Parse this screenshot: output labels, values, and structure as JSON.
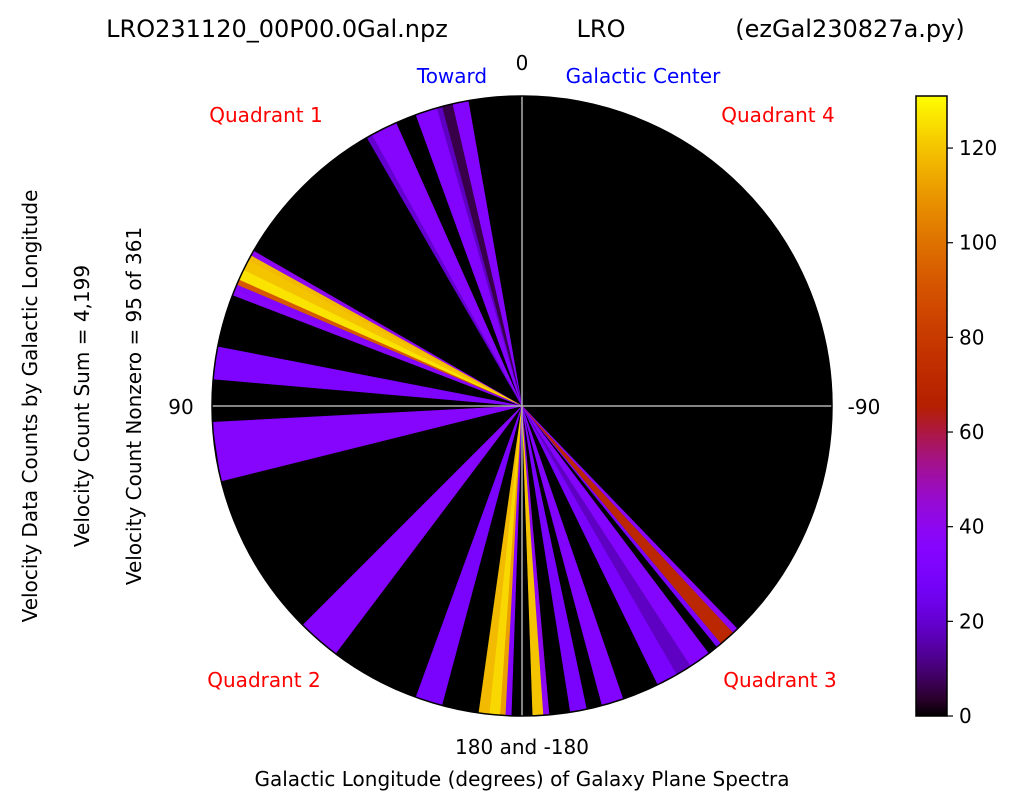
{
  "chart_data": {
    "type": "polar-wedge",
    "title": {
      "left": "LRO231120_00P00.0Gal.npz",
      "center": "LRO",
      "right": "(ezGal230827a.py)"
    },
    "xlabel": "Galactic Longitude (degrees) of Galaxy Plane Spectra",
    "ylabel_lines": [
      "Velocity Data Counts by Galactic Longitude",
      "Velocity Count Sum = 4,199",
      "Velocity Count Nonzero = 95 of 361"
    ],
    "direction_labels": {
      "top": "0",
      "left": "90",
      "right": "-90",
      "bottom": "180 and -180"
    },
    "toward_labels": [
      "Toward",
      "Galactic Center"
    ],
    "quadrant_labels": {
      "q1": "Quadrant 1",
      "q2": "Quadrant 2",
      "q3": "Quadrant 3",
      "q4": "Quadrant 4"
    },
    "colorbar": {
      "colormap": "gnuplot",
      "vmin": 0,
      "vmax": 131,
      "ticks": [
        0,
        20,
        40,
        60,
        80,
        100,
        120
      ]
    },
    "colors": {
      "toward_label": "#0000ff",
      "quadrant_label": "#ff0000",
      "background": "#000000",
      "axis_lines": "#b0b0b0"
    },
    "wedges": [
      {
        "from": 10,
        "to": 13,
        "value": 35
      },
      {
        "from": 13,
        "to": 15,
        "value": 6
      },
      {
        "from": 15,
        "to": 16,
        "value": 18
      },
      {
        "from": 16,
        "to": 20,
        "value": 34
      },
      {
        "from": 24,
        "to": 29,
        "value": 36
      },
      {
        "from": 29,
        "to": 30,
        "value": 20
      },
      {
        "from": 60,
        "to": 61,
        "value": 40
      },
      {
        "from": 61,
        "to": 62,
        "value": 118
      },
      {
        "from": 62,
        "to": 64,
        "value": 120
      },
      {
        "from": 64,
        "to": 66,
        "value": 126
      },
      {
        "from": 66,
        "to": 67,
        "value": 92
      },
      {
        "from": 67,
        "to": 68,
        "value": 35
      },
      {
        "from": 68,
        "to": 69,
        "value": 37
      },
      {
        "from": 79,
        "to": 85,
        "value": 32
      },
      {
        "from": 93,
        "to": 104,
        "value": 36
      },
      {
        "from": 135,
        "to": 143,
        "value": 36
      },
      {
        "from": 160,
        "to": 165,
        "value": 30
      },
      {
        "from": 172,
        "to": 174,
        "value": 118
      },
      {
        "from": 174,
        "to": 176,
        "value": 124
      },
      {
        "from": 176,
        "to": 177,
        "value": 112
      },
      {
        "from": 177,
        "to": 178,
        "value": 35
      },
      {
        "from": -178,
        "to": -176,
        "value": 120
      },
      {
        "from": -176,
        "to": -175,
        "value": 40
      },
      {
        "from": -171,
        "to": -168,
        "value": 30
      },
      {
        "from": -165,
        "to": -161,
        "value": 34
      },
      {
        "from": -154,
        "to": -150,
        "value": 30
      },
      {
        "from": -150,
        "to": -147,
        "value": 18
      },
      {
        "from": -147,
        "to": -143,
        "value": 35
      },
      {
        "from": -141,
        "to": -140,
        "value": 30
      },
      {
        "from": -140,
        "to": -137,
        "value": 70
      },
      {
        "from": -137,
        "to": -136,
        "value": 38
      }
    ]
  }
}
